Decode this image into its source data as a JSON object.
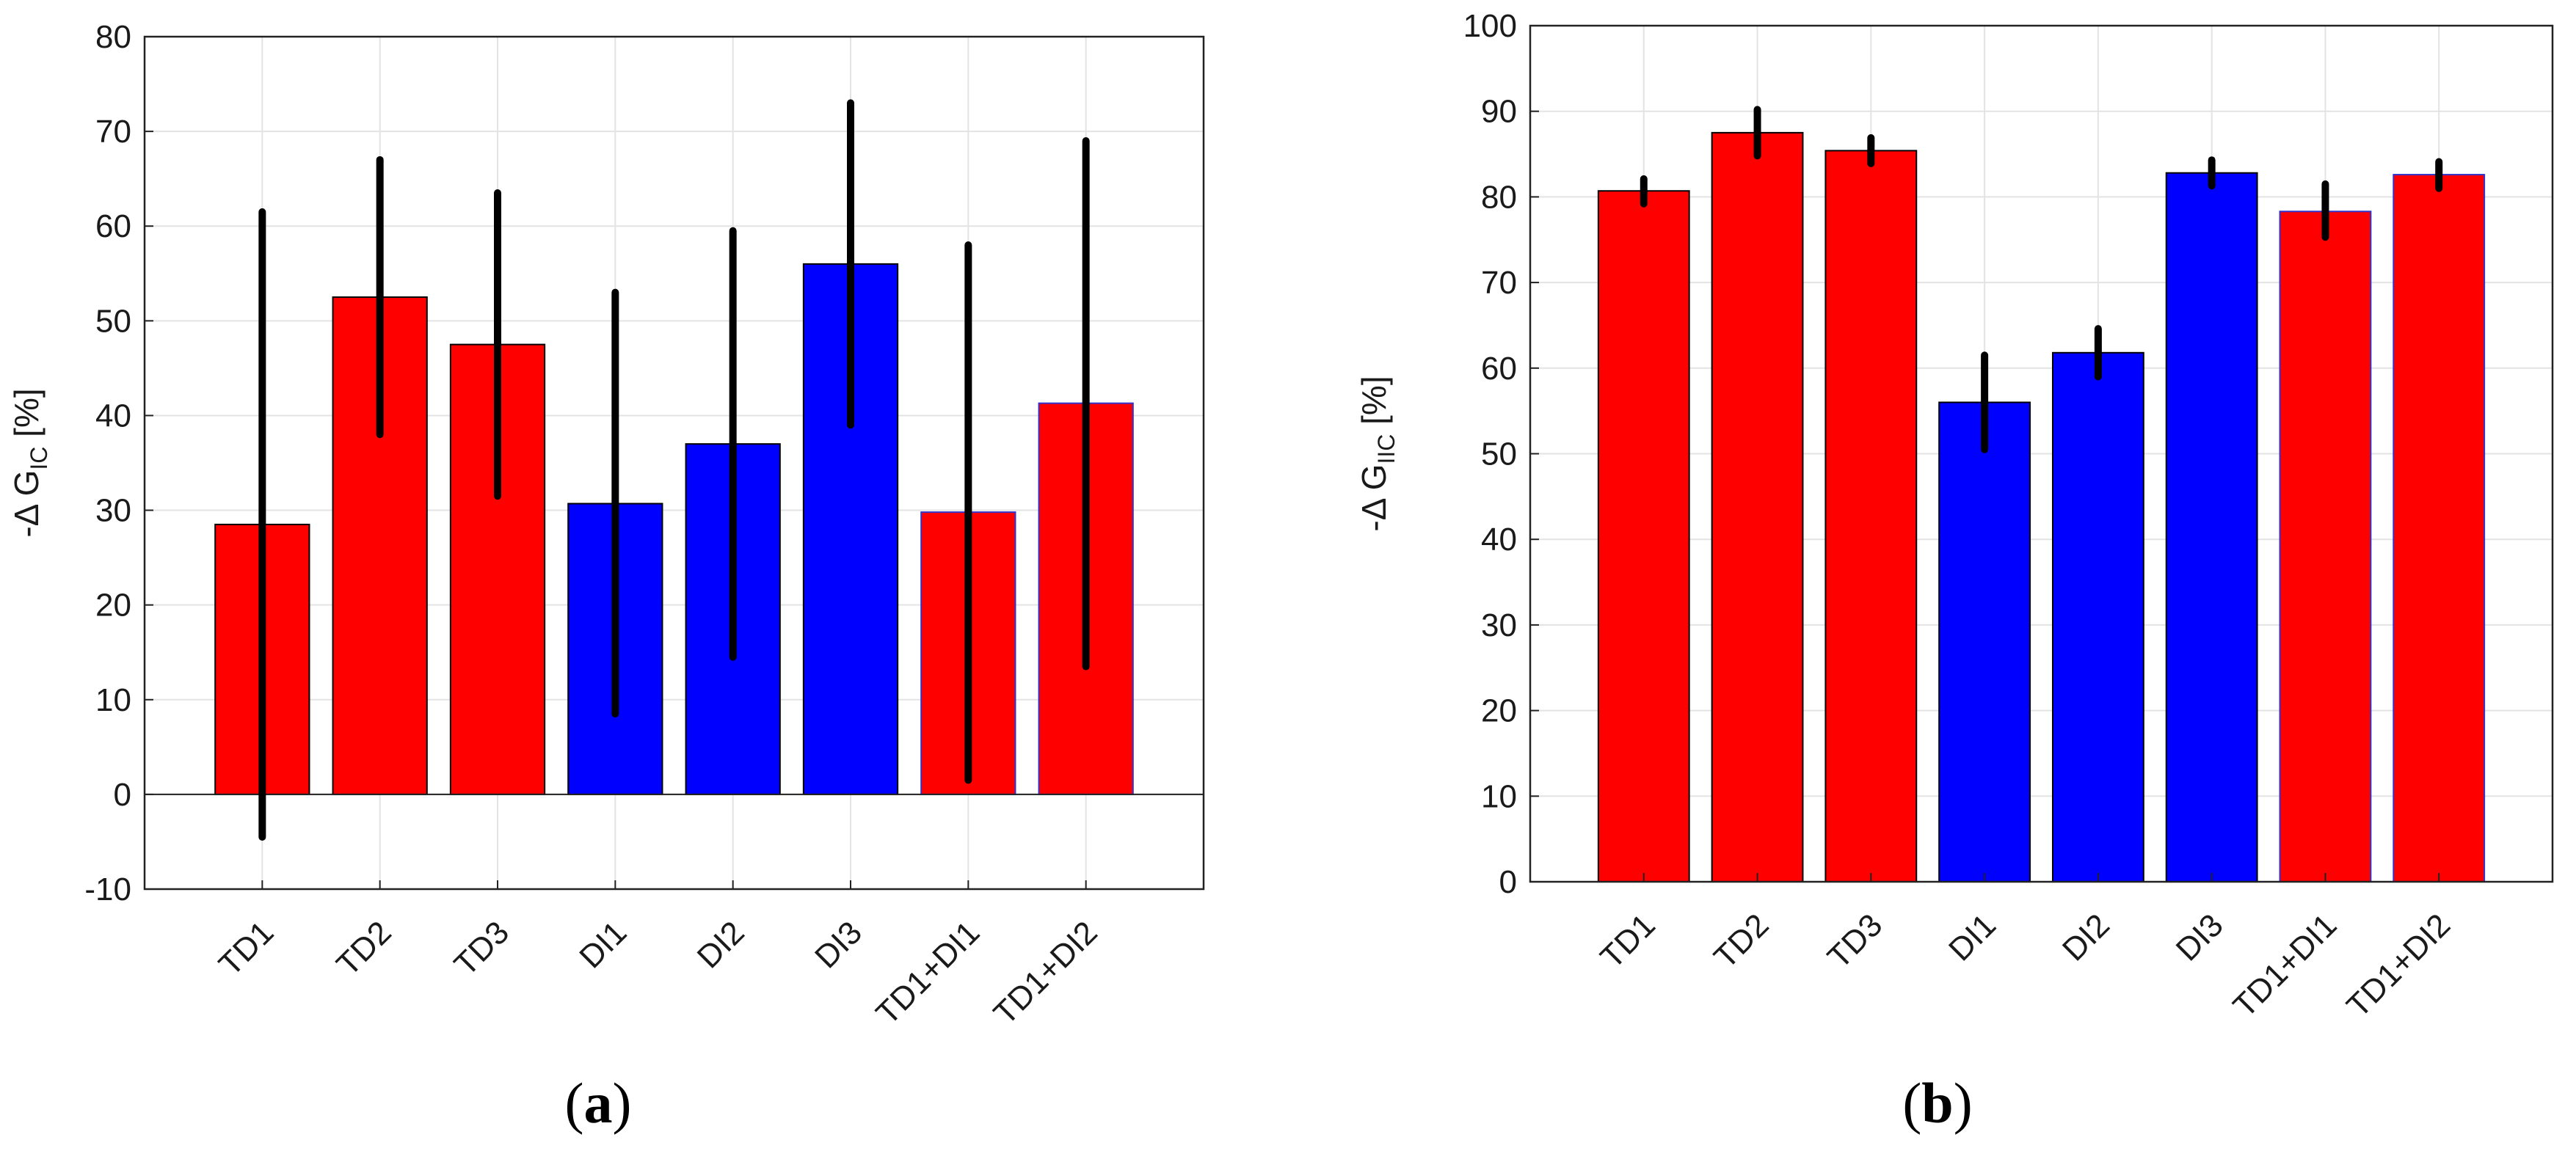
{
  "chart_data": [
    {
      "type": "bar",
      "panel_label": "a",
      "categories": [
        "TD1",
        "TD2",
        "TD3",
        "DI1",
        "DI2",
        "DI3",
        "TD1+DI1",
        "TD1+DI2"
      ],
      "values": [
        28.5,
        52.5,
        47.5,
        30.7,
        37.0,
        56.0,
        29.8,
        41.3
      ],
      "error_low": [
        -4.5,
        38.0,
        31.5,
        8.5,
        14.5,
        39.0,
        1.5,
        13.5
      ],
      "error_high": [
        61.5,
        67.0,
        63.5,
        53.0,
        59.5,
        73.0,
        58.0,
        69.0
      ],
      "colors": [
        "#ff0000",
        "#ff0000",
        "#ff0000",
        "#0000ff",
        "#0000ff",
        "#0000ff",
        "#ff0000",
        "#ff0000"
      ],
      "ylabel_main": "-Δ G",
      "ylabel_sub": "IC",
      "ylabel_unit": " [%]",
      "ylim": [
        -10,
        80
      ],
      "yticks": [
        "-10",
        "0",
        "10",
        "20",
        "30",
        "40",
        "50",
        "60",
        "70",
        "80"
      ],
      "grid": true
    },
    {
      "type": "bar",
      "panel_label": "b",
      "categories": [
        "TD1",
        "TD2",
        "TD3",
        "DI1",
        "DI2",
        "DI3",
        "TD1+DI1",
        "TD1+DI2"
      ],
      "values": [
        80.7,
        87.5,
        85.4,
        56.0,
        61.8,
        82.8,
        78.3,
        82.6
      ],
      "error_low": [
        79.2,
        84.8,
        83.9,
        50.5,
        59.0,
        81.3,
        75.3,
        81.0
      ],
      "error_high": [
        82.1,
        90.2,
        86.9,
        61.5,
        64.6,
        84.3,
        81.5,
        84.1
      ],
      "colors": [
        "#ff0000",
        "#ff0000",
        "#ff0000",
        "#0000ff",
        "#0000ff",
        "#0000ff",
        "#ff0000",
        "#ff0000"
      ],
      "ylabel_main": "-Δ G",
      "ylabel_sub": "IIC",
      "ylabel_unit": " [%]",
      "ylim": [
        0,
        100
      ],
      "yticks": [
        "0",
        "10",
        "20",
        "30",
        "40",
        "50",
        "60",
        "70",
        "80",
        "90",
        "100"
      ],
      "grid": true
    }
  ]
}
